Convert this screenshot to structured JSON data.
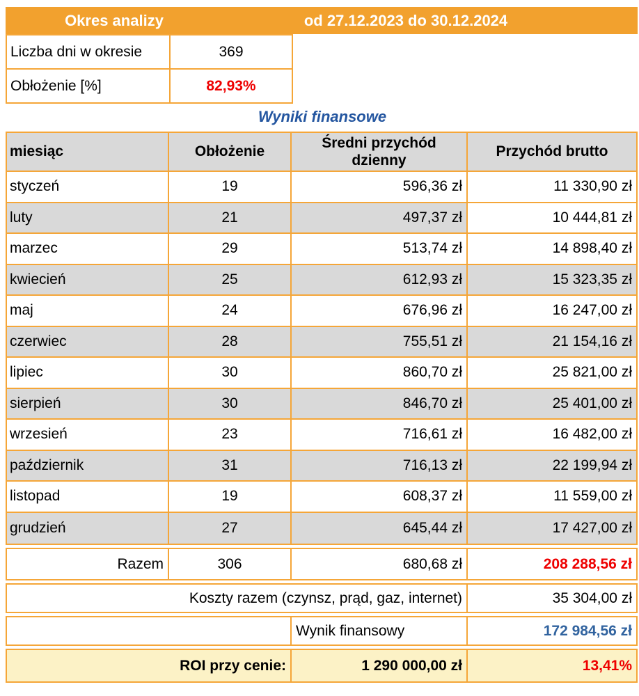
{
  "colors": {
    "orange": "#F2A12E",
    "border": "#F5A638",
    "header_gray": "#D9D9D9",
    "roi_yellow": "#FCF2C6",
    "red_text": "#EE0000",
    "blue_title": "#2456A0",
    "blue_value": "#31639F"
  },
  "summary": {
    "header_left": "Okres analizy",
    "header_right": "od 27.12.2023 do 30.12.2024",
    "rows": [
      {
        "label": "Liczba dni w okresie",
        "value": "369"
      },
      {
        "label": "Obłożenie [%]",
        "value": "82,93%"
      }
    ]
  },
  "title": "Wyniki finansowe",
  "table": {
    "headers": [
      "miesiąc",
      "Obłożenie",
      "Średni przychód dzienny",
      "Przychód brutto"
    ],
    "rows": [
      {
        "month": "styczeń",
        "days": "19",
        "avg": "596,36 zł",
        "gross": "11 330,90 zł"
      },
      {
        "month": "luty",
        "days": "21",
        "avg": "497,37 zł",
        "gross": "10 444,81 zł"
      },
      {
        "month": "marzec",
        "days": "29",
        "avg": "513,74 zł",
        "gross": "14 898,40 zł"
      },
      {
        "month": "kwiecień",
        "days": "25",
        "avg": "612,93 zł",
        "gross": "15 323,35 zł"
      },
      {
        "month": "maj",
        "days": "24",
        "avg": "676,96 zł",
        "gross": "16 247,00 zł"
      },
      {
        "month": "czerwiec",
        "days": "28",
        "avg": "755,51 zł",
        "gross": "21 154,16 zł"
      },
      {
        "month": "lipiec",
        "days": "30",
        "avg": "860,70 zł",
        "gross": "25 821,00 zł"
      },
      {
        "month": "sierpień",
        "days": "30",
        "avg": "846,70 zł",
        "gross": "25 401,00 zł"
      },
      {
        "month": "wrzesień",
        "days": "23",
        "avg": "716,61 zł",
        "gross": "16 482,00 zł"
      },
      {
        "month": "październik",
        "days": "31",
        "avg": "716,13 zł",
        "gross": "22 199,94 zł"
      },
      {
        "month": "listopad",
        "days": "19",
        "avg": "608,37 zł",
        "gross": "11 559,00 zł"
      },
      {
        "month": "grudzień",
        "days": "27",
        "avg": "645,44 zł",
        "gross": "17 427,00 zł"
      }
    ],
    "total": {
      "label": "Razem",
      "days": "306",
      "avg": "680,68 zł",
      "gross": "208 288,56 zł"
    },
    "costs": {
      "label": "Koszty razem (czynsz, prąd, gaz, internet)",
      "value": "35 304,00 zł"
    },
    "result": {
      "label": "Wynik finansowy",
      "value": "172 984,56 zł"
    },
    "roi": {
      "label": "ROI przy cenie:",
      "price": "1 290 000,00 zł",
      "value": "13,41%"
    }
  }
}
